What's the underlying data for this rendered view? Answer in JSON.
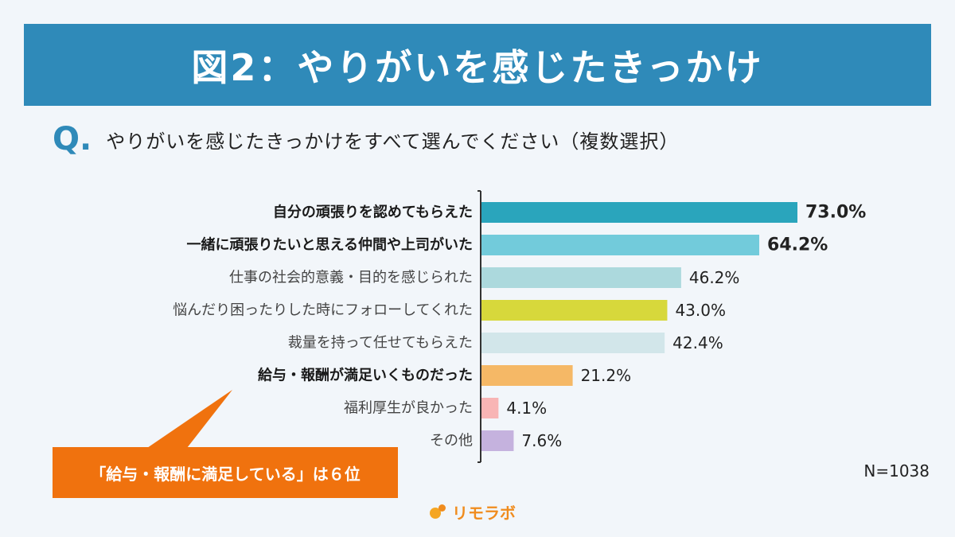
{
  "header": {
    "title": "図2：やりがいを感じたきっかけ"
  },
  "question": {
    "mark": "Q.",
    "text": "やりがいを感じたきっかけをすべて選んでください（複数選択）"
  },
  "callout": {
    "text": "「給与・報酬に満足している」は６位"
  },
  "sample_size": "N=1038",
  "logo": {
    "text": "リモラボ"
  },
  "chart_data": {
    "type": "bar",
    "orientation": "horizontal",
    "categories": [
      "自分の頑張りを認めてもらえた",
      "一緒に頑張りたいと思える仲間や上司がいた",
      "仕事の社会的意義・目的を感じられた",
      "悩んだり困ったりした時にフォローしてくれた",
      "裁量を持って任せてもらえた",
      "給与・報酬が満足いくものだった",
      "福利厚生が良かった",
      "その他"
    ],
    "values": [
      73.0,
      64.2,
      46.2,
      43.0,
      42.4,
      21.2,
      4.1,
      7.6
    ],
    "value_labels": [
      "73.0%",
      "64.2%",
      "46.2%",
      "43.0%",
      "42.4%",
      "21.2%",
      "4.1%",
      "7.6%"
    ],
    "colors": [
      "#2aa5bc",
      "#72cbdb",
      "#acd9dd",
      "#d7d83b",
      "#d2e6ea",
      "#f5b866",
      "#f8b5b5",
      "#c5b2de"
    ],
    "bold": [
      true,
      true,
      false,
      false,
      false,
      true,
      false,
      false
    ],
    "xlim": [
      0,
      100
    ],
    "grid": false,
    "title": "",
    "xlabel": "",
    "ylabel": ""
  }
}
